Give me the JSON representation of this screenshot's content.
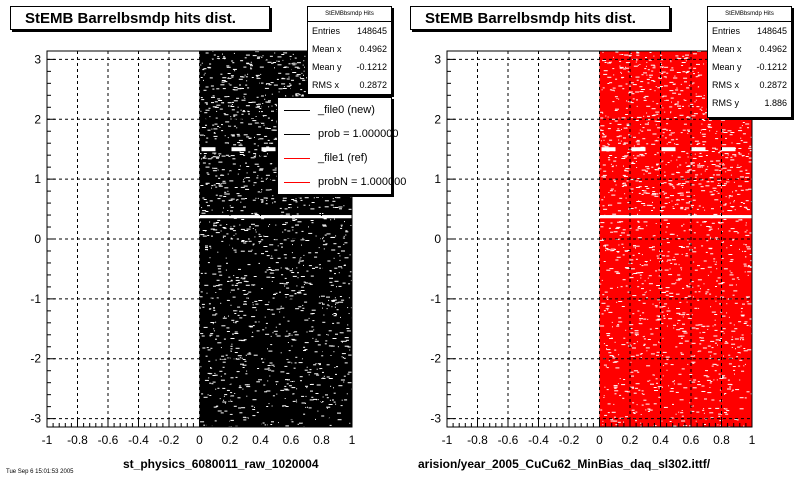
{
  "chart_data": [
    {
      "type": "heatmap",
      "title": "StEMB Barrelbsmdp hits dist.",
      "xlabel": "st_physics_6080011_raw_1020004",
      "ylabel": "",
      "xlim": [
        -1,
        1
      ],
      "ylim": [
        -3.14,
        3.14
      ],
      "x_ticks": [
        "-1",
        "-0.8",
        "-0.6",
        "-0.4",
        "-0.2",
        "0",
        "0.2",
        "0.4",
        "0.6",
        "0.8",
        "1"
      ],
      "y_ticks": [
        "-3",
        "-2",
        "-1",
        "0",
        "1",
        "2",
        "3"
      ],
      "grid": true,
      "fill_color": "#000000",
      "filled_x_range": [
        0,
        1
      ],
      "stats": {
        "header": "StEMBbsmdp Hits",
        "rows": [
          {
            "label": "Entries",
            "value": "148645"
          },
          {
            "label": "Mean x",
            "value": "0.4962"
          },
          {
            "label": "Mean y",
            "value": "-0.1212"
          },
          {
            "label": "RMS x",
            "value": "0.2872"
          }
        ]
      },
      "legend": {
        "placement": "top-right",
        "entries": [
          {
            "label": "_file0 (new)",
            "color": "#000000"
          },
          {
            "label": "prob = 1.000000",
            "color": "#000000"
          },
          {
            "label": "_file1 (ref)",
            "color": "#ff0000"
          },
          {
            "label": "probN = 1.000000",
            "color": "#ff0000"
          }
        ]
      }
    },
    {
      "type": "heatmap",
      "title": "StEMB Barrelbsmdp hits dist.",
      "xlabel": "arision/year_2005_CuCu62_MinBias_daq_sl302.ittf/",
      "ylabel": "",
      "xlim": [
        -1,
        1
      ],
      "ylim": [
        -3.14,
        3.14
      ],
      "x_ticks": [
        "-1",
        "-0.8",
        "-0.6",
        "-0.4",
        "-0.2",
        "0",
        "0.2",
        "0.4",
        "0.6",
        "0.8",
        "1"
      ],
      "y_ticks": [
        "-3",
        "-2",
        "-1",
        "0",
        "1",
        "2",
        "3"
      ],
      "grid": true,
      "fill_color": "#ff0000",
      "filled_x_range": [
        0,
        1
      ],
      "stats": {
        "header": "StEMBbsmdp Hits",
        "rows": [
          {
            "label": "Entries",
            "value": "148645"
          },
          {
            "label": "Mean x",
            "value": "0.4962"
          },
          {
            "label": "Mean y",
            "value": "-0.1212"
          },
          {
            "label": "RMS x",
            "value": "0.2872"
          },
          {
            "label": "RMS y",
            "value": "1.886"
          }
        ]
      }
    }
  ],
  "footer": "Tue Sep 6 15:01:53 2005"
}
